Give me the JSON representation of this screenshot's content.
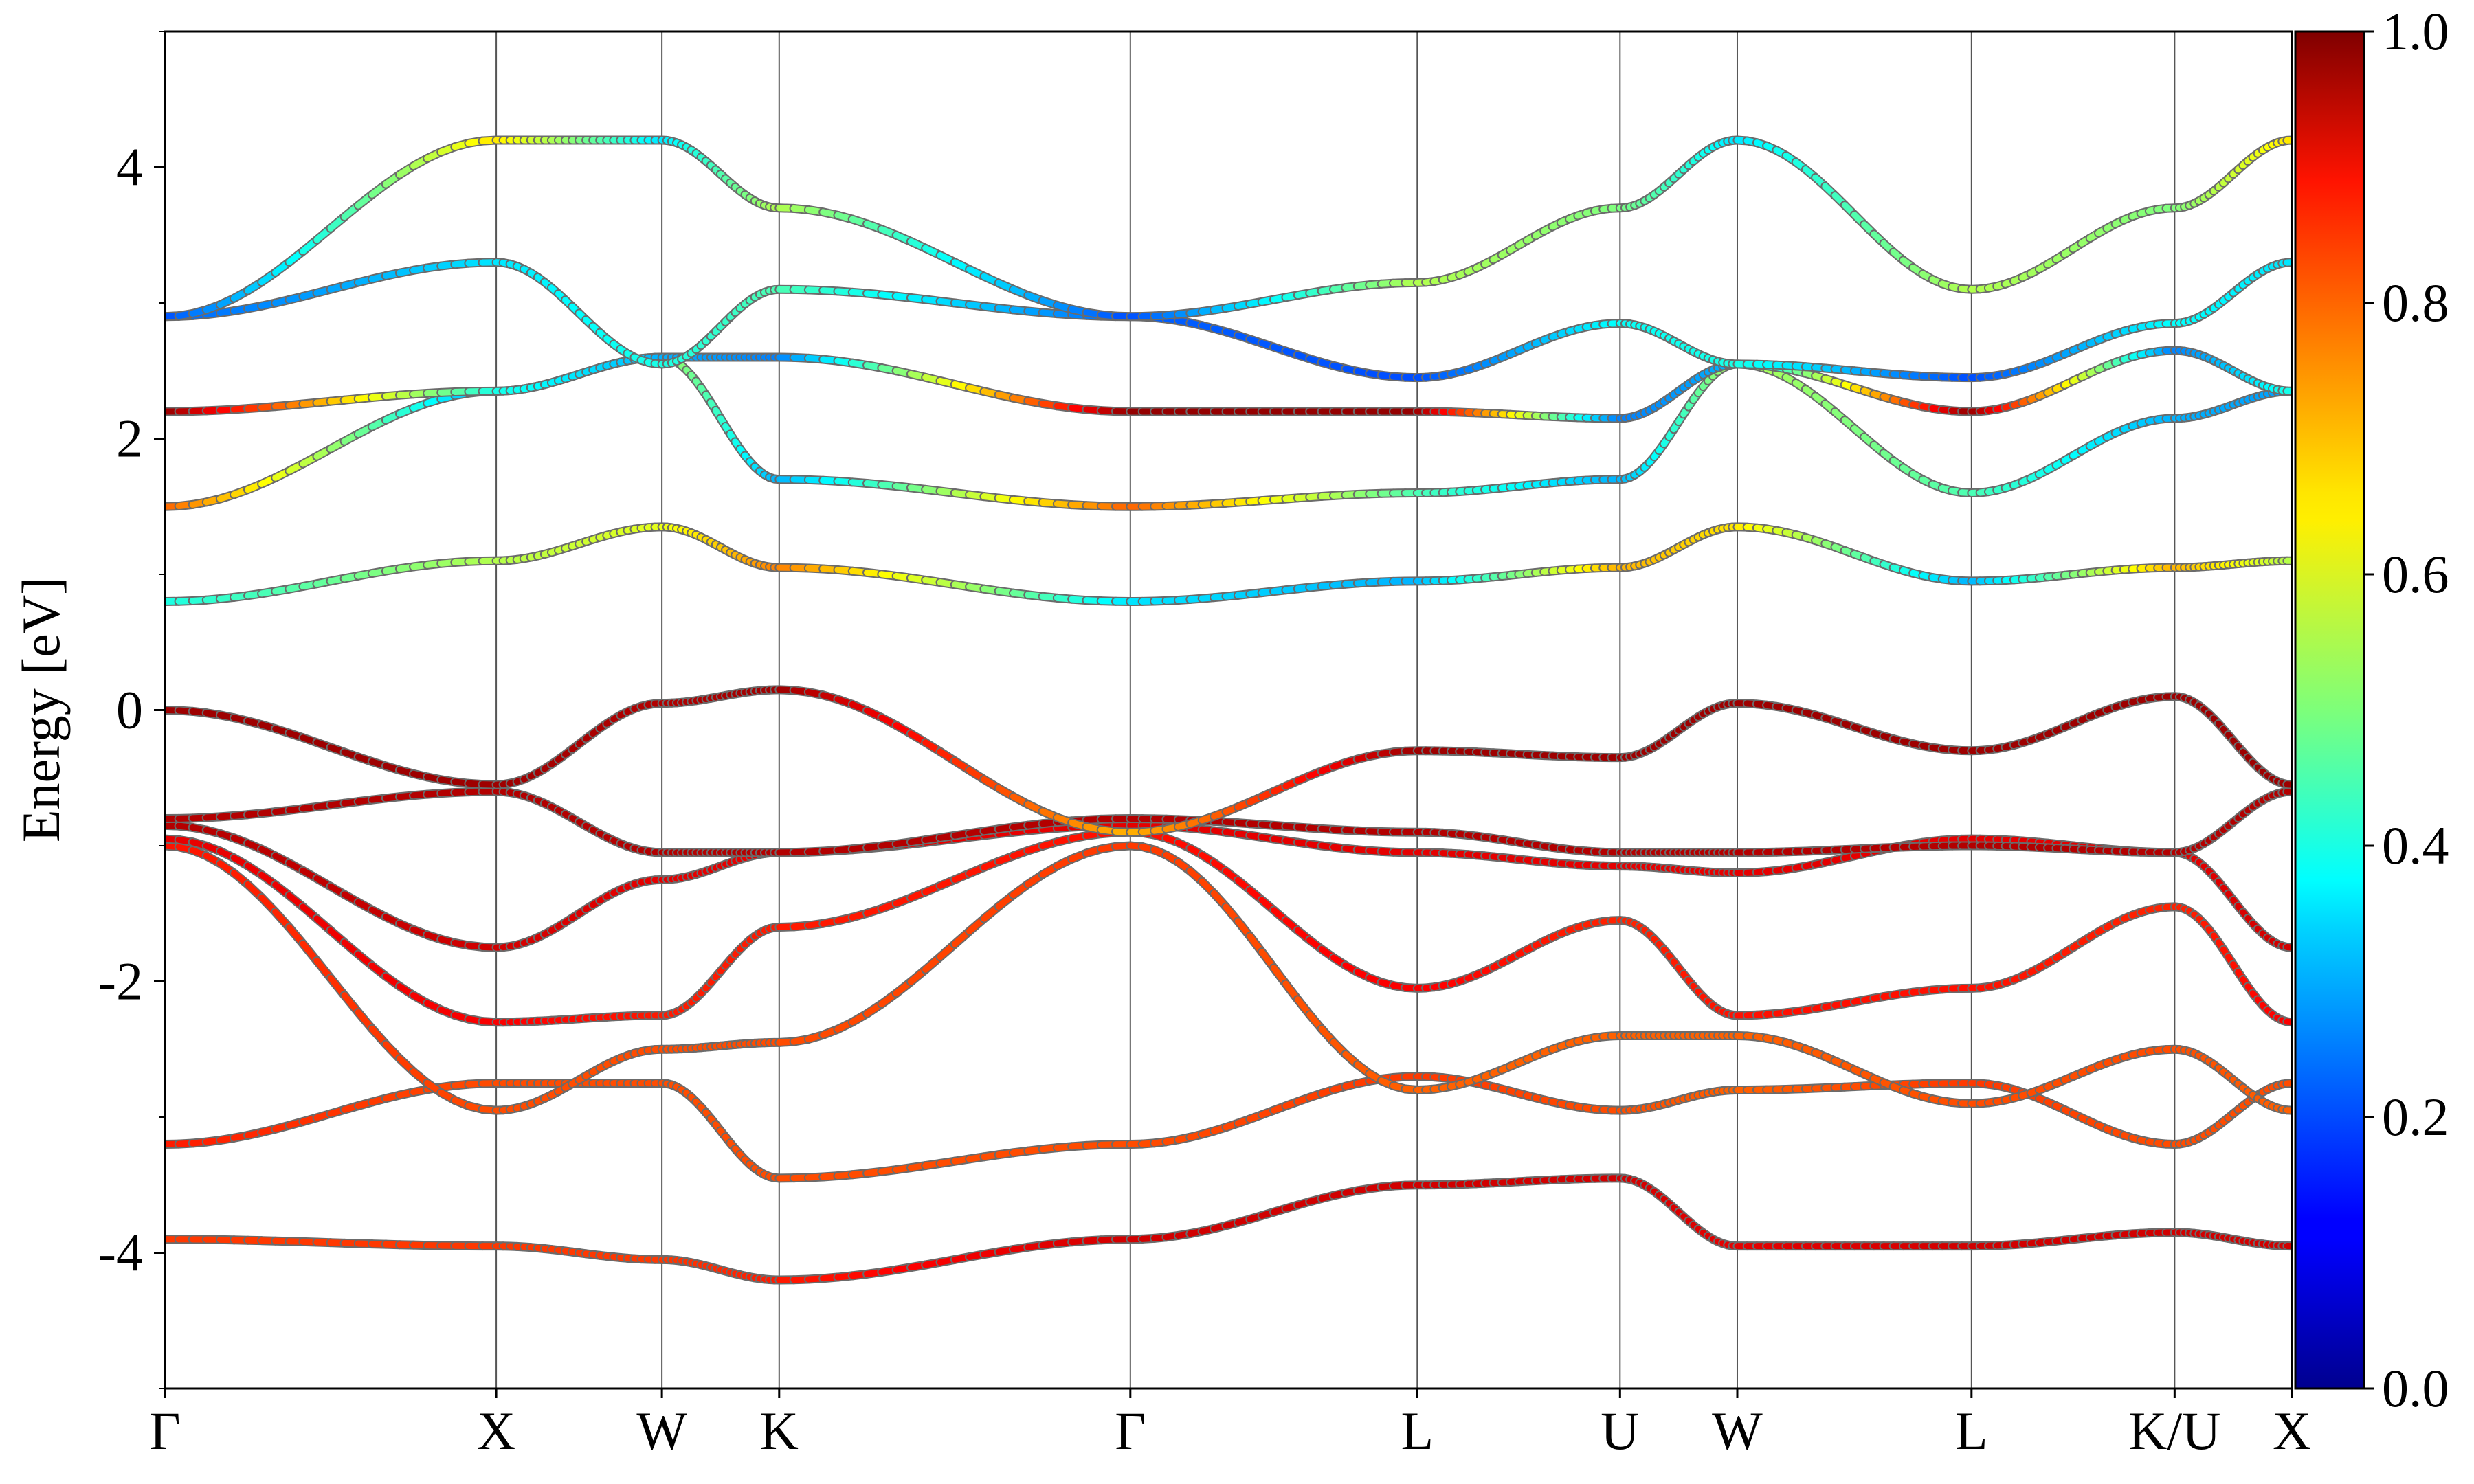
{
  "chart_data": {
    "type": "line",
    "title": "",
    "xlabel": "",
    "ylabel": "Energy [eV]",
    "ylim": [
      -5,
      5
    ],
    "y_ticks": [
      -4,
      -2,
      0,
      2,
      4
    ],
    "y_tick_labels": [
      "-4",
      "-2",
      "0",
      "2",
      "4"
    ],
    "grid": "vertical lines at high-symmetry points",
    "high_symmetry_points": [
      {
        "label": "Γ",
        "k": 0.0
      },
      {
        "label": "X",
        "k": 1.0
      },
      {
        "label": "W",
        "k": 1.5
      },
      {
        "label": "K",
        "k": 1.854
      },
      {
        "label": "Γ",
        "k": 2.914
      },
      {
        "label": "L",
        "k": 3.78
      },
      {
        "label": "U",
        "k": 4.392
      },
      {
        "label": "W",
        "k": 4.746
      },
      {
        "label": "L",
        "k": 5.453
      },
      {
        "label": "K/U",
        "k": 6.066
      },
      {
        "label": "X",
        "k": 6.42
      }
    ],
    "colorbar": {
      "colormap": "jet",
      "range": [
        0.0,
        1.0
      ],
      "ticks": [
        "0.0",
        "0.2",
        "0.4",
        "0.6",
        "0.8",
        "1.0"
      ]
    },
    "series": [
      {
        "w": [
          0.82,
          0.82,
          0.82,
          0.85,
          0.92,
          0.92,
          0.92,
          0.9,
          0.92,
          0.92,
          0.92
        ],
        "e": [
          -3.9,
          -3.95,
          -4.05,
          -4.2,
          -3.9,
          -3.5,
          -3.45,
          -3.95,
          -3.95,
          -3.85,
          -3.95
        ]
      },
      {
        "w": [
          0.85,
          0.8,
          0.8,
          0.8,
          0.8,
          0.82,
          0.8,
          0.78,
          0.82,
          0.8,
          0.8
        ],
        "e": [
          -3.2,
          -2.75,
          -2.75,
          -3.45,
          -3.2,
          -2.7,
          -2.95,
          -2.8,
          -2.75,
          -3.2,
          -2.75
        ]
      },
      {
        "w": [
          0.86,
          0.8,
          0.8,
          0.8,
          0.82,
          0.78,
          0.78,
          0.78,
          0.8,
          0.8,
          0.78
        ],
        "e": [
          -1.0,
          -2.95,
          -2.5,
          -2.45,
          -1.0,
          -2.8,
          -2.4,
          -2.4,
          -2.9,
          -2.5,
          -2.95
        ]
      },
      {
        "w": [
          0.9,
          0.88,
          0.85,
          0.85,
          0.86,
          0.88,
          0.84,
          0.86,
          0.86,
          0.84,
          0.88
        ],
        "e": [
          -0.95,
          -2.3,
          -2.25,
          -1.6,
          -0.9,
          -2.05,
          -1.55,
          -2.25,
          -2.05,
          -1.45,
          -2.3
        ]
      },
      {
        "w": [
          0.95,
          0.92,
          0.9,
          0.9,
          0.9,
          0.9,
          0.9,
          0.9,
          0.9,
          0.9,
          0.92
        ],
        "e": [
          -0.85,
          -1.75,
          -1.25,
          -1.05,
          -0.85,
          -1.05,
          -1.15,
          -1.2,
          -0.95,
          -1.05,
          -1.75
        ]
      },
      {
        "w": [
          0.95,
          0.95,
          0.95,
          0.95,
          0.95,
          0.95,
          0.95,
          0.95,
          0.95,
          0.95,
          0.95
        ],
        "e": [
          -0.8,
          -0.6,
          -1.05,
          -1.05,
          -0.8,
          -0.9,
          -1.05,
          -1.05,
          -1.0,
          -1.05,
          -0.6
        ]
      },
      {
        "w": [
          0.97,
          0.97,
          0.95,
          0.97,
          0.7,
          0.97,
          0.97,
          0.97,
          0.97,
          0.97,
          0.97
        ],
        "e": [
          0.0,
          -0.55,
          0.05,
          0.15,
          -0.9,
          -0.3,
          -0.35,
          0.05,
          -0.3,
          0.1,
          -0.55
        ]
      },
      {
        "w": [
          0.4,
          0.55,
          0.6,
          0.75,
          0.35,
          0.3,
          0.7,
          0.65,
          0.3,
          0.7,
          0.55
        ],
        "e": [
          0.8,
          1.1,
          1.35,
          1.05,
          0.8,
          0.95,
          1.05,
          1.35,
          0.95,
          1.05,
          1.1
        ]
      },
      {
        "w": [
          0.78,
          0.28,
          0.55,
          0.3,
          0.78,
          0.45,
          0.3,
          0.55,
          0.45,
          0.3,
          0.28
        ],
        "e": [
          1.5,
          2.35,
          2.6,
          1.7,
          1.5,
          1.6,
          1.7,
          2.55,
          1.6,
          2.15,
          2.35
        ]
      },
      {
        "w": [
          0.98,
          0.4,
          0.3,
          0.25,
          0.98,
          0.98,
          0.25,
          0.3,
          0.98,
          0.25,
          0.4
        ],
        "e": [
          2.2,
          2.35,
          2.6,
          2.6,
          2.2,
          2.2,
          2.15,
          2.55,
          2.2,
          2.65,
          2.35
        ]
      },
      {
        "w": [
          0.22,
          0.35,
          0.4,
          0.45,
          0.22,
          0.2,
          0.38,
          0.4,
          0.2,
          0.38,
          0.35
        ],
        "e": [
          2.9,
          3.3,
          2.55,
          3.1,
          2.9,
          2.45,
          2.85,
          2.55,
          2.45,
          2.85,
          3.3
        ]
      },
      {
        "w": [
          0.2,
          0.65,
          0.35,
          0.55,
          0.2,
          0.55,
          0.5,
          0.35,
          0.55,
          0.5,
          0.65
        ],
        "e": [
          2.9,
          4.2,
          4.2,
          3.7,
          2.9,
          3.15,
          3.7,
          4.2,
          3.1,
          3.7,
          4.2
        ]
      }
    ]
  }
}
